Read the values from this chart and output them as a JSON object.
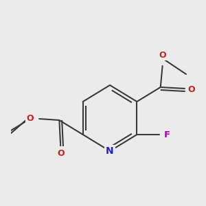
{
  "bg_color": "#ebebeb",
  "bond_color": "#3a3a3a",
  "bond_width": 1.5,
  "atom_colors": {
    "N": "#2020cc",
    "O": "#cc2020",
    "F": "#aa00aa",
    "C": "#3a3a3a"
  },
  "font_size_atom": 9,
  "font_size_small": 8
}
